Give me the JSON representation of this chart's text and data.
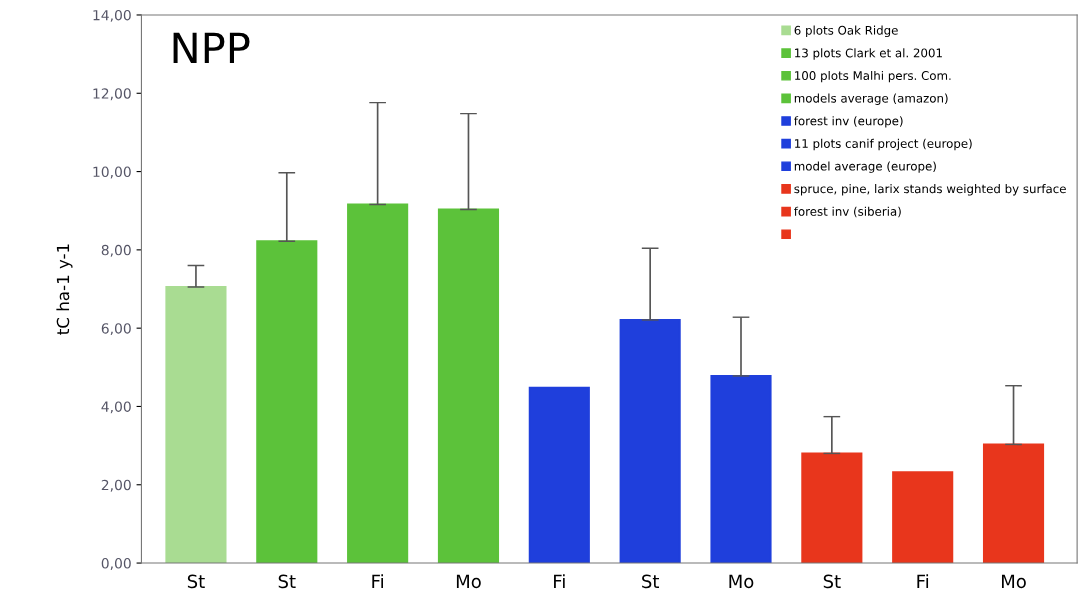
{
  "chart_data": {
    "type": "bar",
    "title": "NPP",
    "ylabel": "tC ha-1 y-1",
    "categories": [
      "St",
      "St",
      "Fi",
      "Mo",
      "Fi",
      "St",
      "Mo",
      "St",
      "Fi",
      "Mo"
    ],
    "series": [
      {
        "name": "6 plots Oak Ridge",
        "color": "#a9dc92",
        "values": [
          7.05,
          null,
          null,
          null,
          null,
          null,
          null,
          null,
          null,
          null
        ],
        "errors": [
          [
            7.05,
            7.6
          ],
          null,
          null,
          null,
          null,
          null,
          null,
          null,
          null,
          null
        ]
      },
      {
        "name": "13 plots Clark et al. 2001",
        "color": "#5cc23a",
        "values": [
          null,
          8.22,
          null,
          null,
          null,
          null,
          null,
          null,
          null,
          null
        ],
        "errors": [
          null,
          [
            8.22,
            9.97
          ],
          null,
          null,
          null,
          null,
          null,
          null,
          null,
          null
        ]
      },
      {
        "name": "100 plots Malhi pers. Com.",
        "color": "#5cc23a",
        "values": [
          null,
          null,
          9.16,
          null,
          null,
          null,
          null,
          null,
          null,
          null
        ],
        "errors": [
          null,
          null,
          [
            9.16,
            11.76
          ],
          null,
          null,
          null,
          null,
          null,
          null,
          null
        ]
      },
      {
        "name": "models average (amazon)",
        "color": "#5cc23a",
        "values": [
          null,
          null,
          null,
          9.03,
          null,
          null,
          null,
          null,
          null,
          null
        ],
        "errors": [
          null,
          null,
          null,
          [
            9.03,
            11.48
          ],
          null,
          null,
          null,
          null,
          null,
          null
        ]
      },
      {
        "name": "forest inv (europe)",
        "color": "#1f3fdc",
        "values": [
          null,
          null,
          null,
          null,
          4.48,
          null,
          null,
          null,
          null,
          null
        ]
      },
      {
        "name": "11 plots canif project (europe)",
        "color": "#1f3fdc",
        "values": [
          null,
          null,
          null,
          null,
          null,
          6.21,
          null,
          null,
          null,
          null
        ],
        "errors": [
          null,
          null,
          null,
          null,
          null,
          [
            6.21,
            8.04
          ],
          null,
          null,
          null,
          null
        ]
      },
      {
        "name": "model average (europe)",
        "color": "#1f3fdc",
        "values": [
          null,
          null,
          null,
          null,
          null,
          null,
          4.78,
          null,
          null,
          null
        ],
        "errors": [
          null,
          null,
          null,
          null,
          null,
          null,
          [
            4.78,
            6.28
          ],
          null,
          null,
          null
        ]
      },
      {
        "name": "spruce, pine, larix stands weighted by surface",
        "color": "#e8361c",
        "values": [
          null,
          null,
          null,
          null,
          null,
          null,
          null,
          2.8,
          null,
          null
        ],
        "errors": [
          null,
          null,
          null,
          null,
          null,
          null,
          null,
          [
            2.8,
            3.74
          ],
          null,
          null
        ]
      },
      {
        "name": "forest inv (siberia)",
        "color": "#e8361c",
        "values": [
          null,
          null,
          null,
          null,
          null,
          null,
          null,
          null,
          2.32,
          null
        ]
      },
      {
        "color": "#e8361c",
        "values": [
          null,
          null,
          null,
          null,
          null,
          null,
          null,
          null,
          null,
          3.03
        ],
        "errors": [
          null,
          null,
          null,
          null,
          null,
          null,
          null,
          null,
          null,
          [
            3.03,
            4.53
          ]
        ]
      }
    ],
    "ylim": [
      0,
      14
    ],
    "yticks": [
      {
        "value": 0,
        "label": "0,00"
      },
      {
        "value": 2,
        "label": "2,00"
      },
      {
        "value": 4,
        "label": "4,00"
      },
      {
        "value": 6,
        "label": "6,00"
      },
      {
        "value": 8,
        "label": "8,00"
      },
      {
        "value": 10,
        "label": "10,00"
      },
      {
        "value": 12,
        "label": "12,00"
      },
      {
        "value": 14,
        "label": "14,00"
      }
    ],
    "grid": false,
    "legend": "top right"
  }
}
